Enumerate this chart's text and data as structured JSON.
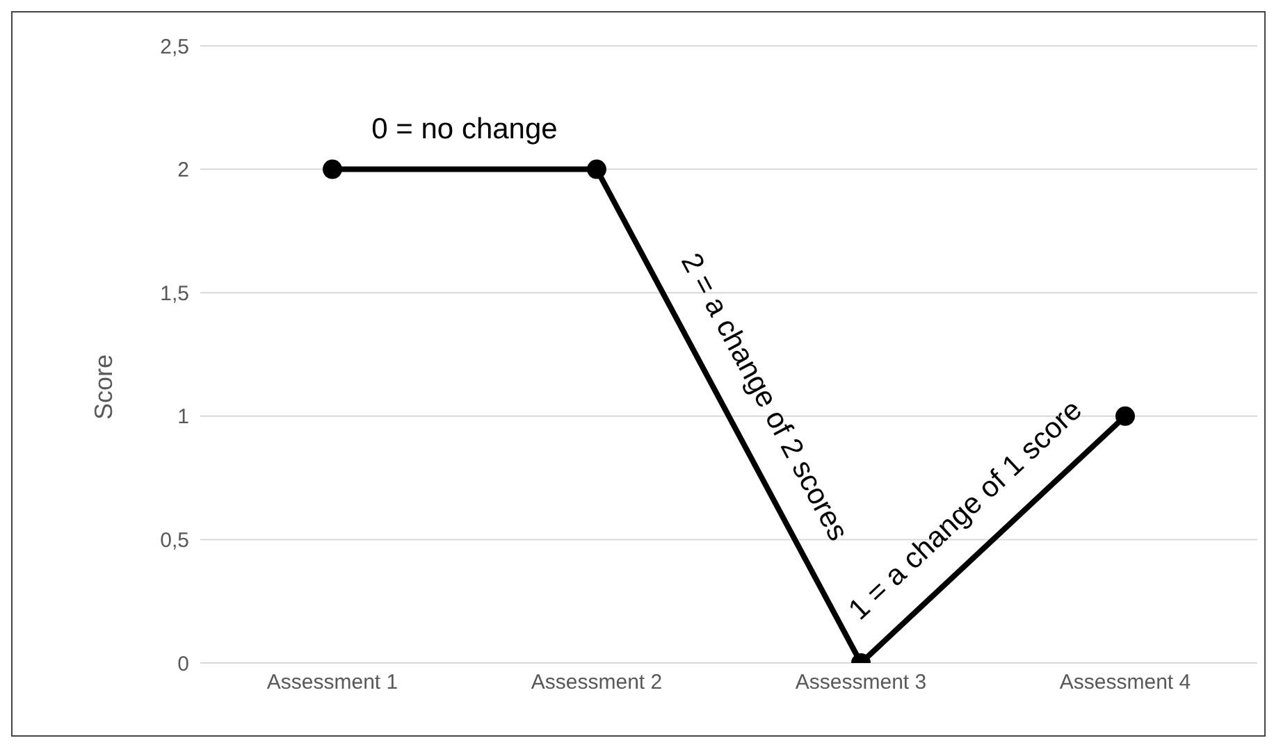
{
  "chart_data": {
    "type": "line",
    "ylabel": "Score",
    "categories": [
      "Assessment 1",
      "Assessment 2",
      "Assessment 3",
      "Assessment 4"
    ],
    "series": [
      {
        "color": "#000000",
        "values": [
          2,
          2,
          0,
          1
        ]
      }
    ],
    "ylim": [
      0,
      2.5
    ],
    "yticks": [
      0,
      {
        "value": 0.5,
        "label": "0,5"
      },
      1,
      {
        "value": 1.5,
        "label": "1,5"
      },
      2,
      {
        "value": 2.5,
        "label": "2,5"
      }
    ],
    "grid": "y",
    "marker": "circle",
    "line_style": "solid",
    "annotations": [
      "0 = no change",
      "2 = a change of 2 scores",
      "1 = a change of 1 score"
    ]
  }
}
